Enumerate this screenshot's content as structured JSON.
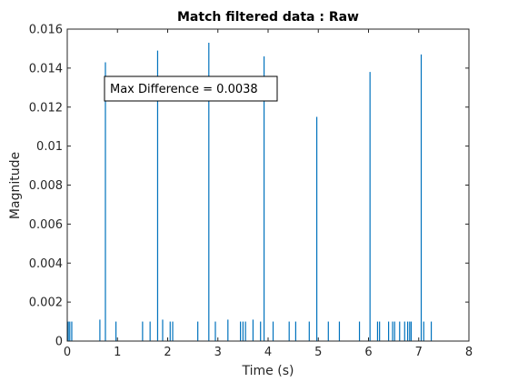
{
  "chart_data": {
    "type": "bar",
    "title": "Match filtered data : Raw",
    "xlabel": "Time (s)",
    "ylabel": "Magnitude",
    "xlim": [
      0,
      8
    ],
    "ylim": [
      0,
      0.016
    ],
    "xticks": [
      "0",
      "1",
      "2",
      "3",
      "4",
      "5",
      "6",
      "7",
      "8"
    ],
    "yticks": [
      "0",
      "0.002",
      "0.004",
      "0.006",
      "0.008",
      "0.01",
      "0.012",
      "0.014",
      "0.016"
    ],
    "grid": false,
    "bar_color": "#0072BD",
    "annotation": "Max Difference = 0.0038",
    "x": [
      0.02,
      0.05,
      0.09,
      0.65,
      0.76,
      0.97,
      1.5,
      1.65,
      1.8,
      1.9,
      2.05,
      2.1,
      2.6,
      2.82,
      2.95,
      3.2,
      3.45,
      3.5,
      3.55,
      3.7,
      3.85,
      3.92,
      4.1,
      4.42,
      4.55,
      4.82,
      4.97,
      5.2,
      5.42,
      5.82,
      6.03,
      6.18,
      6.22,
      6.4,
      6.48,
      6.52,
      6.62,
      6.72,
      6.78,
      6.82,
      6.85,
      7.05,
      7.1,
      7.25
    ],
    "values": [
      0.001,
      0.001,
      0.001,
      0.0011,
      0.0143,
      0.001,
      0.001,
      0.001,
      0.0149,
      0.0011,
      0.001,
      0.001,
      0.001,
      0.0153,
      0.001,
      0.0011,
      0.001,
      0.001,
      0.001,
      0.0011,
      0.001,
      0.0146,
      0.001,
      0.001,
      0.001,
      0.001,
      0.0115,
      0.001,
      0.001,
      0.001,
      0.0138,
      0.001,
      0.001,
      0.001,
      0.001,
      0.001,
      0.001,
      0.001,
      0.001,
      0.001,
      0.001,
      0.0147,
      0.001,
      0.001
    ]
  }
}
